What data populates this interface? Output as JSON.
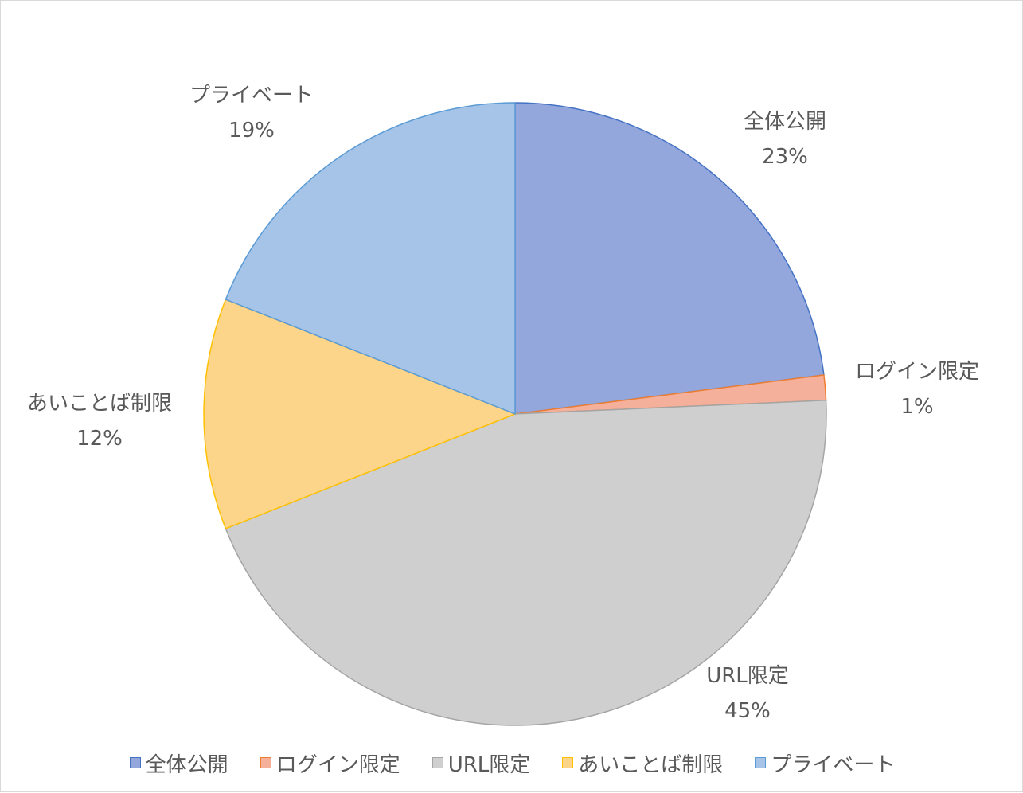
{
  "chart_data": {
    "type": "pie",
    "title": "",
    "start_angle_deg": 0,
    "direction": "clockwise",
    "legend_position": "bottom",
    "slices": [
      {
        "label": "全体公開",
        "value": 23,
        "display": "23%",
        "color": "#94a7dc",
        "stroke": "#4472c4"
      },
      {
        "label": "ログイン限定",
        "value": 1.3,
        "display": "1%",
        "color": "#f4b09a",
        "stroke": "#ed7d31"
      },
      {
        "label": "URL限定",
        "value": 44.7,
        "display": "45%",
        "color": "#cfcfcf",
        "stroke": "#a5a5a5"
      },
      {
        "label": "あいことば制限",
        "value": 12,
        "display": "12%",
        "color": "#fdd58a",
        "stroke": "#ffc000"
      },
      {
        "label": "プライベート",
        "value": 19,
        "display": "19%",
        "color": "#a6c4e8",
        "stroke": "#5b9bd5"
      }
    ]
  }
}
